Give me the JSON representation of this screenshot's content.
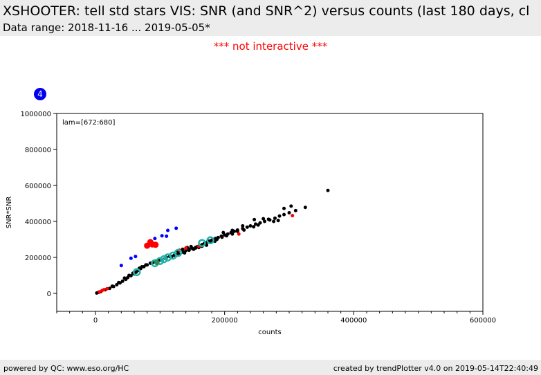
{
  "header": {
    "title": "XSHOOTER: tell std stars VIS: SNR (and SNR^2) versus counts (last 180 days, cl",
    "subtitle": "Data range: 2018-11-16 ... 2019-05-05*"
  },
  "notice": "*** not interactive ***",
  "badge": "4",
  "footer": {
    "left": "powered by QC: www.eso.org/HC",
    "right": "created by trendPlotter v4.0 on 2019-05-14T22:40:49"
  },
  "chart_data": {
    "type": "scatter",
    "annotation": "lam=[672:680]",
    "xlabel": "counts",
    "ylabel": "SNR*SNR",
    "xlim": [
      -60000,
      600000
    ],
    "ylim": [
      -100000,
      1000000
    ],
    "xticks": [
      0,
      200000,
      400000,
      600000
    ],
    "yticks": [
      0,
      200000,
      400000,
      600000,
      800000,
      1000000
    ],
    "grid": false,
    "colors": {
      "black": "#000000",
      "red": "#ff0000",
      "blue": "#0000ff",
      "cyan": "#20b2aa",
      "green": "#2e8b57"
    },
    "series": [
      {
        "color": "#000000",
        "points": [
          [
            2000,
            2000
          ],
          [
            5000,
            6000
          ],
          [
            8000,
            9000
          ],
          [
            15000,
            20000
          ],
          [
            22000,
            28000
          ],
          [
            28000,
            38000
          ],
          [
            33000,
            48000
          ],
          [
            38000,
            58000
          ],
          [
            42000,
            68000
          ],
          [
            47000,
            78000
          ],
          [
            50000,
            88000
          ],
          [
            55000,
            98000
          ],
          [
            60000,
            108000
          ],
          [
            63000,
            118000
          ],
          [
            66000,
            128000
          ],
          [
            70000,
            138000
          ],
          [
            75000,
            148000
          ],
          [
            80000,
            158000
          ],
          [
            85000,
            168000
          ],
          [
            92000,
            175000
          ],
          [
            100000,
            185000
          ],
          [
            108000,
            195000
          ],
          [
            115000,
            205000
          ],
          [
            122000,
            212000
          ],
          [
            128000,
            222000
          ],
          [
            135000,
            230000
          ],
          [
            140000,
            238000
          ],
          [
            145000,
            245000
          ],
          [
            150000,
            250000
          ],
          [
            155000,
            255000
          ],
          [
            158000,
            260000
          ],
          [
            162000,
            265000
          ],
          [
            165000,
            270000
          ],
          [
            168000,
            275000
          ],
          [
            170000,
            280000
          ],
          [
            173000,
            285000
          ],
          [
            176000,
            290000
          ],
          [
            180000,
            295000
          ],
          [
            183000,
            300000
          ],
          [
            186000,
            305000
          ],
          [
            190000,
            310000
          ],
          [
            195000,
            318000
          ],
          [
            200000,
            325000
          ],
          [
            205000,
            330000
          ],
          [
            210000,
            338000
          ],
          [
            215000,
            345000
          ],
          [
            220000,
            352000
          ],
          [
            228000,
            360000
          ],
          [
            235000,
            368000
          ],
          [
            240000,
            375000
          ],
          [
            248000,
            385000
          ],
          [
            255000,
            392000
          ],
          [
            262000,
            400000
          ],
          [
            270000,
            408000
          ],
          [
            278000,
            418000
          ],
          [
            285000,
            430000
          ],
          [
            292000,
            438000
          ],
          [
            300000,
            448000
          ],
          [
            310000,
            460000
          ],
          [
            325000,
            478000
          ],
          [
            360000,
            572000
          ],
          [
            138000,
            225000
          ],
          [
            145000,
            240000
          ],
          [
            152000,
            245000
          ],
          [
            160000,
            255000
          ],
          [
            130000,
            215000
          ],
          [
            125000,
            210000
          ],
          [
            118000,
            205000
          ],
          [
            165000,
            262000
          ],
          [
            178000,
            290000
          ],
          [
            188000,
            300000
          ],
          [
            196000,
            312000
          ],
          [
            203000,
            320000
          ],
          [
            212000,
            330000
          ],
          [
            220000,
            345000
          ],
          [
            230000,
            352000
          ],
          [
            245000,
            370000
          ],
          [
            252000,
            380000
          ],
          [
            260000,
            415000
          ],
          [
            268000,
            412000
          ],
          [
            276000,
            400000
          ],
          [
            283000,
            405000
          ],
          [
            292000,
            472000
          ],
          [
            303000,
            485000
          ],
          [
            246000,
            410000
          ],
          [
            228000,
            375000
          ],
          [
            212000,
            350000
          ],
          [
            198000,
            338000
          ],
          [
            185000,
            290000
          ],
          [
            172000,
            268000
          ],
          [
            155000,
            252000
          ],
          [
            148000,
            260000
          ],
          [
            142000,
            255000
          ],
          [
            135000,
            245000
          ],
          [
            128000,
            232000
          ],
          [
            110000,
            200000
          ],
          [
            102000,
            190000
          ],
          [
            96000,
            182000
          ],
          [
            88000,
            170000
          ],
          [
            78000,
            158000
          ],
          [
            72000,
            148000
          ],
          [
            68000,
            140000
          ],
          [
            58000,
            112000
          ],
          [
            52000,
            100000
          ],
          [
            45000,
            85000
          ],
          [
            36000,
            60000
          ],
          [
            26000,
            40000
          ]
        ]
      },
      {
        "color": "#ff0000",
        "points": [
          [
            6000,
            8000
          ],
          [
            10000,
            15000
          ],
          [
            13000,
            20000
          ],
          [
            18000,
            26000
          ],
          [
            80000,
            265000
          ],
          [
            88000,
            272000
          ],
          [
            93000,
            270000
          ],
          [
            85000,
            285000
          ],
          [
            140000,
            252000
          ],
          [
            160000,
            262000
          ],
          [
            222000,
            330000
          ],
          [
            305000,
            432000
          ],
          [
            130000,
            240000
          ]
        ]
      },
      {
        "color": "#0000ff",
        "points": [
          [
            40000,
            155000
          ],
          [
            55000,
            195000
          ],
          [
            62000,
            205000
          ],
          [
            92000,
            305000
          ],
          [
            103000,
            320000
          ],
          [
            110000,
            318000
          ],
          [
            112000,
            350000
          ],
          [
            125000,
            362000
          ]
        ]
      },
      {
        "color": "#20b2aa",
        "ring": true,
        "points": [
          [
            64000,
            118000
          ],
          [
            92000,
            168000
          ],
          [
            100000,
            180000
          ],
          [
            106000,
            190000
          ],
          [
            112000,
            200000
          ],
          [
            120000,
            210000
          ],
          [
            128000,
            225000
          ],
          [
            165000,
            280000
          ],
          [
            178000,
            295000
          ]
        ]
      },
      {
        "color": "#2e8b57",
        "points": [
          [
            95000,
            172000
          ]
        ]
      }
    ]
  }
}
